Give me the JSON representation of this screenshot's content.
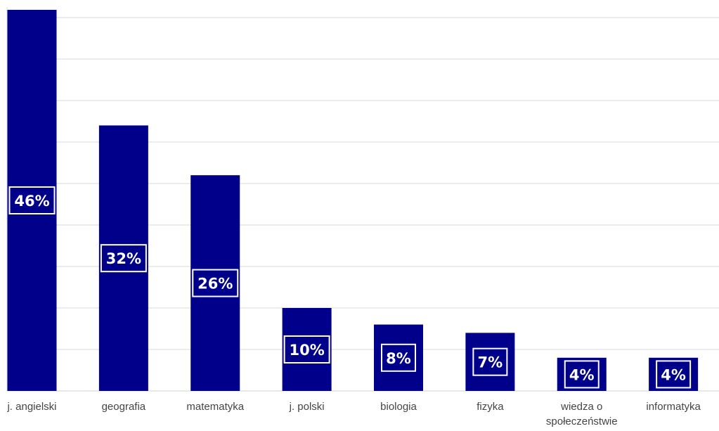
{
  "chart_data": {
    "type": "bar",
    "categories": [
      "j. angielski",
      "geografia",
      "matematyka",
      "j. polski",
      "biologia",
      "fizyka",
      "wiedza o społeczeństwie",
      "informatyka"
    ],
    "category_lines": [
      [
        "j. angielski"
      ],
      [
        "geografia"
      ],
      [
        "matematyka"
      ],
      [
        "j. polski"
      ],
      [
        "biologia"
      ],
      [
        "fizyka"
      ],
      [
        "wiedza o",
        "społeczeństwie"
      ],
      [
        "informatyka"
      ]
    ],
    "values": [
      46,
      32,
      26,
      10,
      8,
      7,
      4,
      4
    ],
    "value_labels": [
      "46%",
      "32%",
      "26%",
      "10%",
      "8%",
      "7%",
      "4%",
      "4%"
    ],
    "unit": "%",
    "ylim": [
      0,
      45
    ],
    "grid": true,
    "title": "",
    "xlabel": "",
    "ylabel": ""
  },
  "colors": {
    "bar": "#00008b",
    "grid": "#d9d9d9",
    "label_text": "#ffffff",
    "axis_text": "#444444"
  }
}
